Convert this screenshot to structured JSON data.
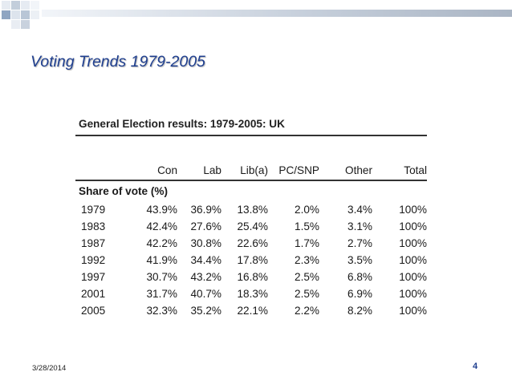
{
  "slide": {
    "title": "Voting Trends 1979-2005",
    "date": "3/28/2014",
    "page_number": "4"
  },
  "table": {
    "heading": "General Election results: 1979-2005: UK",
    "columns": [
      "",
      "Con",
      "Lab",
      "Lib(a)",
      "PC/SNP",
      "Other",
      "Total"
    ],
    "section_label": "Share of vote (%)",
    "rows": [
      [
        "1979",
        "43.9%",
        "36.9%",
        "13.8%",
        "2.0%",
        "3.4%",
        "100%"
      ],
      [
        "1983",
        "42.4%",
        "27.6%",
        "25.4%",
        "1.5%",
        "3.1%",
        "100%"
      ],
      [
        "1987",
        "42.2%",
        "30.8%",
        "22.6%",
        "1.7%",
        "2.7%",
        "100%"
      ],
      [
        "1992",
        "41.9%",
        "34.4%",
        "17.8%",
        "2.3%",
        "3.5%",
        "100%"
      ],
      [
        "1997",
        "30.7%",
        "43.2%",
        "16.8%",
        "2.5%",
        "6.8%",
        "100%"
      ],
      [
        "2001",
        "31.7%",
        "40.7%",
        "18.3%",
        "2.5%",
        "6.9%",
        "100%"
      ],
      [
        "2005",
        "32.3%",
        "35.2%",
        "22.1%",
        "2.2%",
        "8.2%",
        "100%"
      ]
    ]
  },
  "theme": {
    "title_color": "#1f3f8f",
    "banner_colors": [
      "#8fa5c2",
      "#c3cedb",
      "#e9edf3"
    ]
  }
}
